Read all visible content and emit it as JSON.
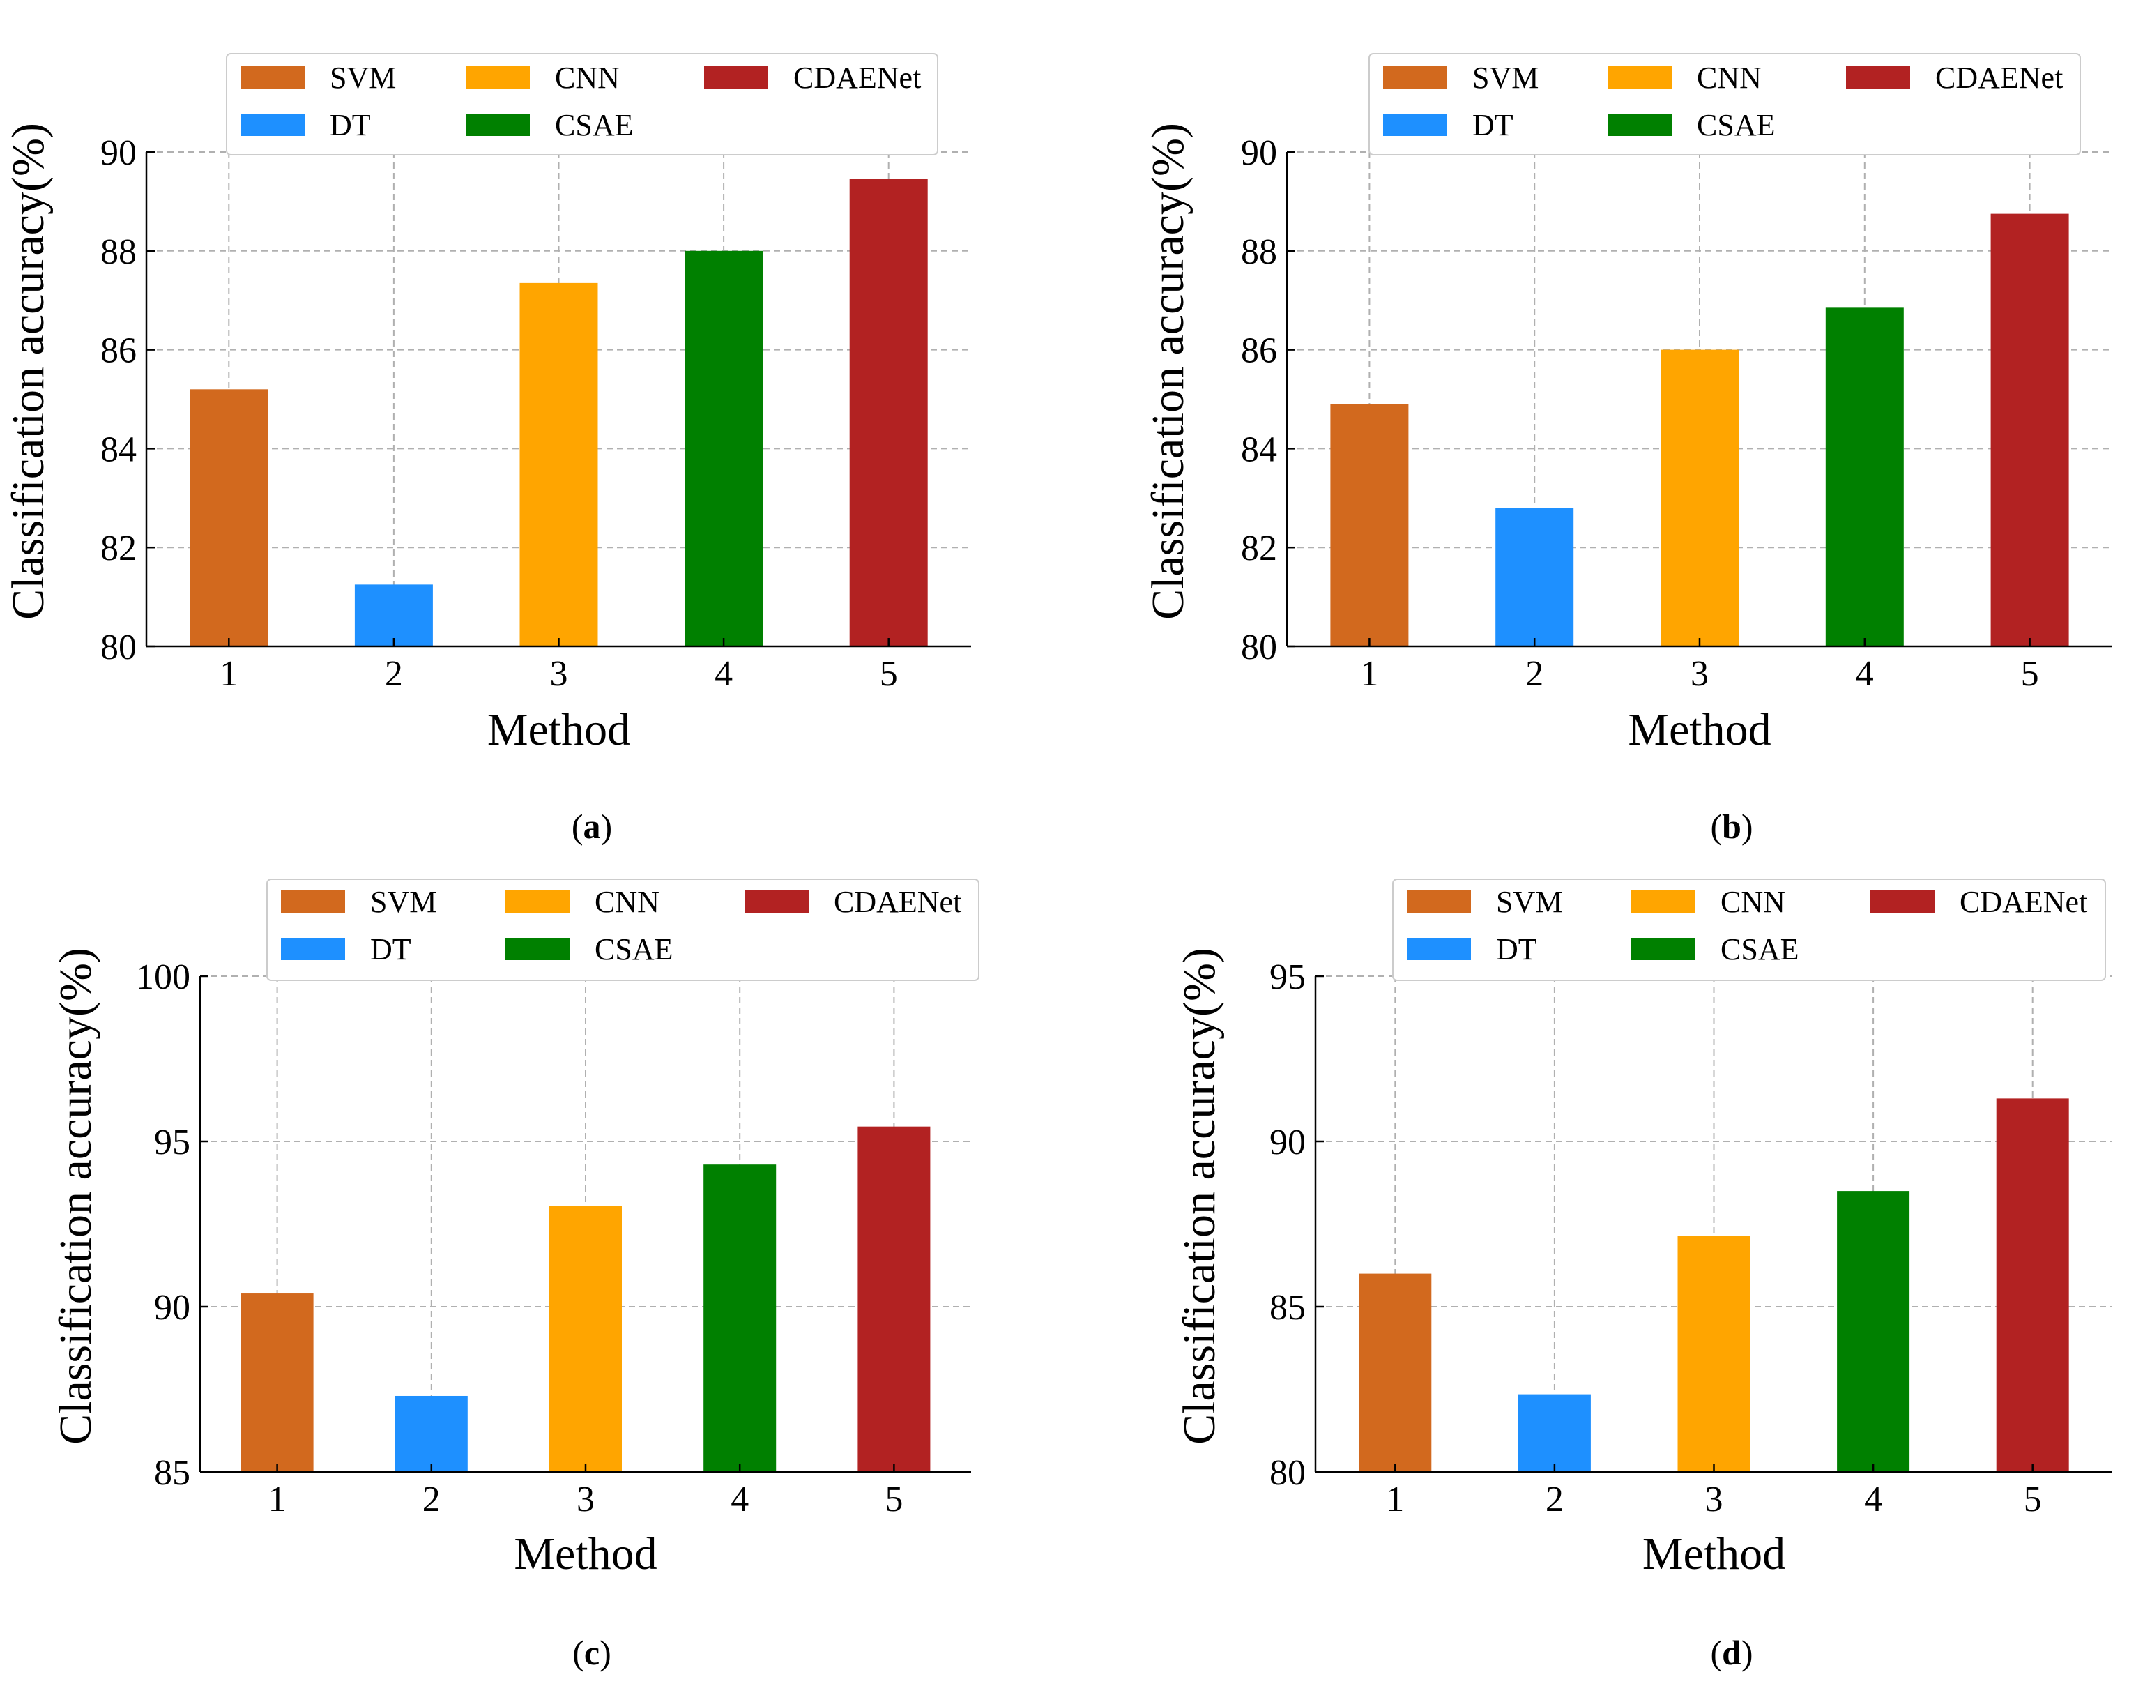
{
  "legend": {
    "entries": [
      {
        "label": "SVM",
        "color": "#d2691e"
      },
      {
        "label": "CNN",
        "color": "#ffa500"
      },
      {
        "label": "CDAENet",
        "color": "#b22222"
      },
      {
        "label": "DT",
        "color": "#1e90ff"
      },
      {
        "label": "CSAE",
        "color": "#008000"
      }
    ]
  },
  "chart_data": [
    {
      "type": "bar",
      "caption": "a",
      "xlabel": "Method",
      "ylabel": "Classification accuracy(%)",
      "categories": [
        "1",
        "2",
        "3",
        "4",
        "5"
      ],
      "series": [
        {
          "name": "SVM",
          "values": [
            85.2,
            null,
            null,
            null,
            null
          ]
        },
        {
          "name": "DT",
          "values": [
            null,
            81.25,
            null,
            null,
            null
          ]
        },
        {
          "name": "CNN",
          "values": [
            null,
            null,
            87.35,
            null,
            null
          ]
        },
        {
          "name": "CSAE",
          "values": [
            null,
            null,
            null,
            88.0,
            null
          ]
        },
        {
          "name": "CDAENet",
          "values": [
            null,
            null,
            null,
            null,
            89.45
          ]
        }
      ],
      "values": [
        85.2,
        81.25,
        87.35,
        88.0,
        89.45
      ],
      "colors": [
        "#d2691e",
        "#1e90ff",
        "#ffa500",
        "#008000",
        "#b22222"
      ],
      "ylim": [
        80,
        90
      ],
      "yticks": [
        "80",
        "82",
        "84",
        "86",
        "88",
        "90"
      ],
      "grid": true,
      "legend": "top"
    },
    {
      "type": "bar",
      "caption": "b",
      "xlabel": "Method",
      "ylabel": "Classification accuracy(%)",
      "categories": [
        "1",
        "2",
        "3",
        "4",
        "5"
      ],
      "series": [
        {
          "name": "SVM",
          "values": [
            84.9,
            null,
            null,
            null,
            null
          ]
        },
        {
          "name": "DT",
          "values": [
            null,
            82.8,
            null,
            null,
            null
          ]
        },
        {
          "name": "CNN",
          "values": [
            null,
            null,
            86.0,
            null,
            null
          ]
        },
        {
          "name": "CSAE",
          "values": [
            null,
            null,
            null,
            86.85,
            null
          ]
        },
        {
          "name": "CDAENet",
          "values": [
            null,
            null,
            null,
            null,
            88.75
          ]
        }
      ],
      "values": [
        84.9,
        82.8,
        86.0,
        86.85,
        88.75
      ],
      "colors": [
        "#d2691e",
        "#1e90ff",
        "#ffa500",
        "#008000",
        "#b22222"
      ],
      "ylim": [
        80,
        90
      ],
      "yticks": [
        "80",
        "82",
        "84",
        "86",
        "88",
        "90"
      ],
      "grid": true,
      "legend": "top"
    },
    {
      "type": "bar",
      "caption": "c",
      "xlabel": "Method",
      "ylabel": "Classification accuracy(%)",
      "categories": [
        "1",
        "2",
        "3",
        "4",
        "5"
      ],
      "series": [
        {
          "name": "SVM",
          "values": [
            90.4,
            null,
            null,
            null,
            null
          ]
        },
        {
          "name": "DT",
          "values": [
            null,
            87.3,
            null,
            null,
            null
          ]
        },
        {
          "name": "CNN",
          "values": [
            null,
            null,
            93.05,
            null,
            null
          ]
        },
        {
          "name": "CSAE",
          "values": [
            null,
            null,
            null,
            94.3,
            null
          ]
        },
        {
          "name": "CDAENet",
          "values": [
            null,
            null,
            null,
            null,
            95.45
          ]
        }
      ],
      "values": [
        90.4,
        87.3,
        93.05,
        94.3,
        95.45
      ],
      "colors": [
        "#d2691e",
        "#1e90ff",
        "#ffa500",
        "#008000",
        "#b22222"
      ],
      "ylim": [
        85,
        100
      ],
      "yticks": [
        "85",
        "90",
        "95",
        "100"
      ],
      "grid": true,
      "legend": "top"
    },
    {
      "type": "bar",
      "caption": "d",
      "xlabel": "Method",
      "ylabel": "Classification accuracy(%)",
      "categories": [
        "1",
        "2",
        "3",
        "4",
        "5"
      ],
      "series": [
        {
          "name": "SVM",
          "values": [
            86.0,
            null,
            null,
            null,
            null
          ]
        },
        {
          "name": "DT",
          "values": [
            null,
            82.35,
            null,
            null,
            null
          ]
        },
        {
          "name": "CNN",
          "values": [
            null,
            null,
            87.15,
            null,
            null
          ]
        },
        {
          "name": "CSAE",
          "values": [
            null,
            null,
            null,
            88.5,
            null
          ]
        },
        {
          "name": "CDAENet",
          "values": [
            null,
            null,
            null,
            null,
            91.3
          ]
        }
      ],
      "values": [
        86.0,
        82.35,
        87.15,
        88.5,
        91.3
      ],
      "colors": [
        "#d2691e",
        "#1e90ff",
        "#ffa500",
        "#008000",
        "#b22222"
      ],
      "ylim": [
        80,
        95
      ],
      "yticks": [
        "80",
        "85",
        "90",
        "95"
      ],
      "grid": true,
      "legend": "top"
    }
  ]
}
